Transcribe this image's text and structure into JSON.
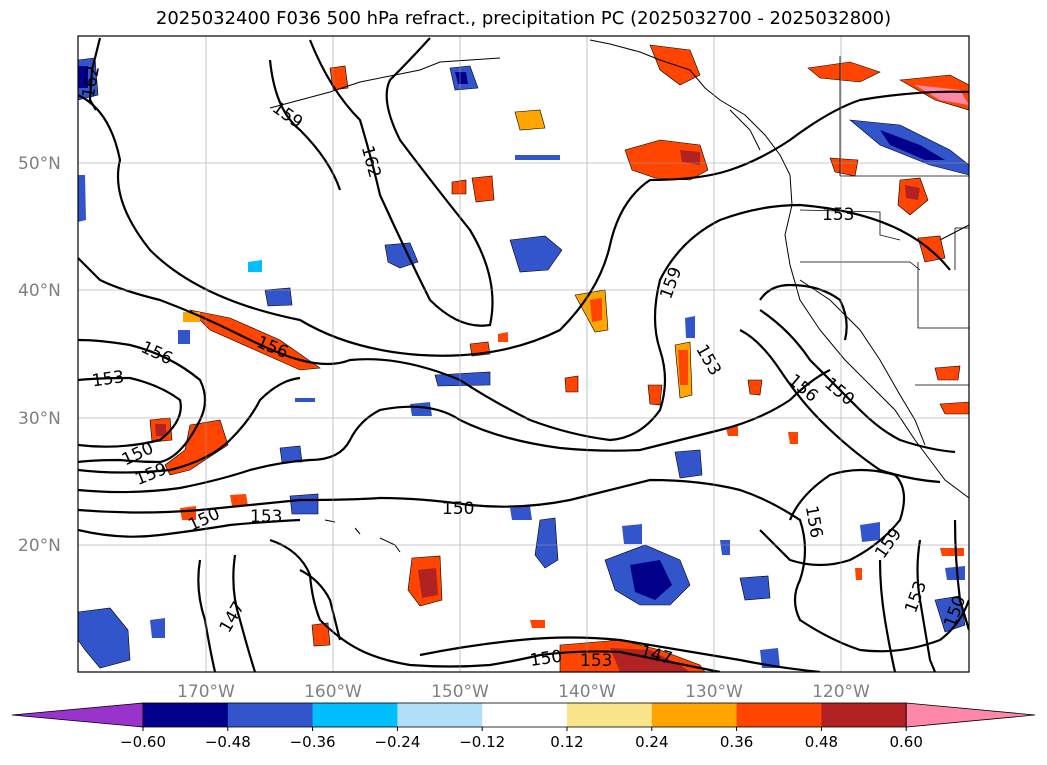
{
  "title": "2025032400 F036 500 hPa refract., precipitation PC (2025032700 - 2025032800)",
  "axes": {
    "y_ticks": [
      "50°N",
      "40°N",
      "30°N",
      "20°N"
    ],
    "x_ticks": [
      "170°W",
      "160°W",
      "150°W",
      "140°W",
      "130°W",
      "120°W"
    ]
  },
  "contour_labels": [
    "162",
    "159",
    "162",
    "156",
    "153",
    "156",
    "150",
    "159",
    "150",
    "153",
    "150",
    "147",
    "150",
    "153",
    "147",
    "159",
    "153",
    "156",
    "150",
    "156",
    "159",
    "153",
    "150",
    "153"
  ],
  "colorbar": {
    "ticks": [
      "−0.60",
      "−0.48",
      "−0.36",
      "−0.24",
      "−0.12",
      "0.12",
      "0.24",
      "0.36",
      "0.48",
      "0.60"
    ],
    "colors": [
      "#9933cc",
      "#00008b",
      "#3355cc",
      "#00bfff",
      "#b0e0f8",
      "#ffffff",
      "#fbe58a",
      "#ffa500",
      "#ff4500",
      "#b22222",
      "#ff88aa"
    ]
  }
}
